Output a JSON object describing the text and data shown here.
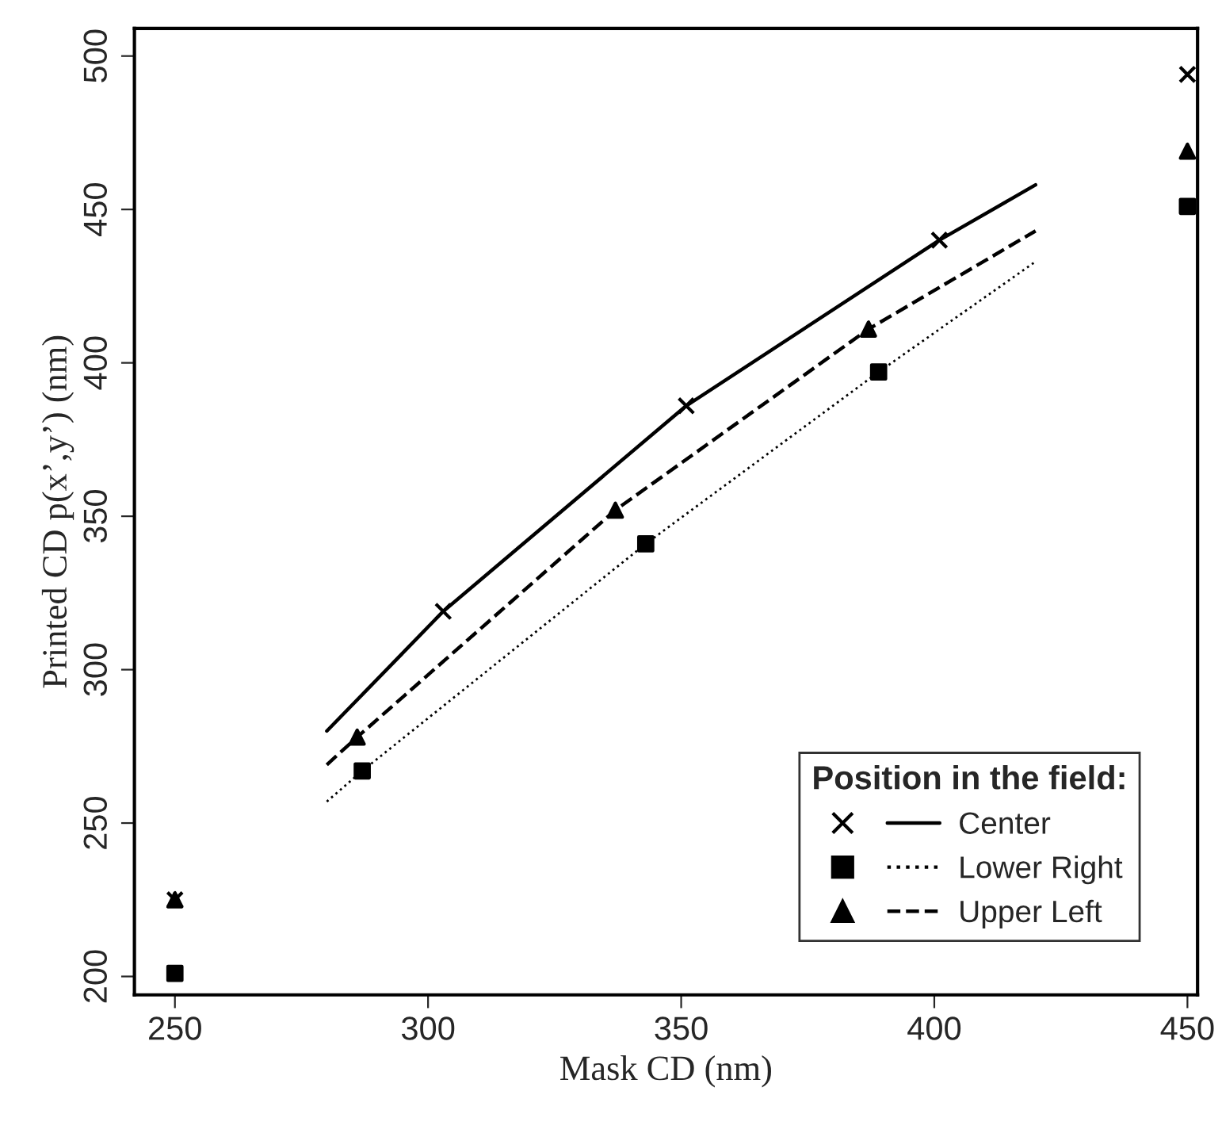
{
  "chart_data": {
    "type": "line",
    "xlabel": "Mask CD (nm)",
    "ylabel": "Printed CD p(x’,y’) (nm)",
    "legend_title": "Position in the field:",
    "legend": "bottom right",
    "grid": false,
    "xlim": [
      242,
      452
    ],
    "ylim": [
      194,
      509
    ],
    "xticks": [
      250,
      300,
      350,
      400,
      450
    ],
    "yticks": [
      200,
      250,
      300,
      350,
      400,
      450,
      500
    ],
    "series": [
      {
        "name": "Center",
        "line_style": "solid",
        "color": "#000000",
        "x": [
          280,
          303,
          351,
          401,
          420
        ],
        "values": [
          280,
          319,
          386,
          440,
          458
        ]
      },
      {
        "type": "scatter",
        "marker": "cross",
        "color": "#000000",
        "x": [
          250,
          303,
          351,
          401,
          450
        ],
        "values": [
          225,
          319,
          386,
          440,
          494
        ]
      },
      {
        "name": "Lower Right",
        "line_style": "dotted",
        "color": "#000000",
        "x": [
          280,
          287,
          343,
          389,
          420
        ],
        "values": [
          257,
          267,
          341,
          397,
          433
        ]
      },
      {
        "type": "scatter",
        "marker": "square",
        "color": "#000000",
        "x": [
          250,
          287,
          343,
          389,
          450
        ],
        "values": [
          201,
          267,
          341,
          397,
          451
        ]
      },
      {
        "name": "Upper Left",
        "line_style": "dashed",
        "color": "#000000",
        "x": [
          280,
          286,
          337,
          387,
          420
        ],
        "values": [
          269,
          278,
          352,
          411,
          443
        ]
      },
      {
        "type": "scatter",
        "marker": "triangle",
        "color": "#000000",
        "x": [
          250,
          286,
          337,
          387,
          450
        ],
        "values": [
          225,
          278,
          352,
          411,
          469
        ]
      }
    ]
  }
}
